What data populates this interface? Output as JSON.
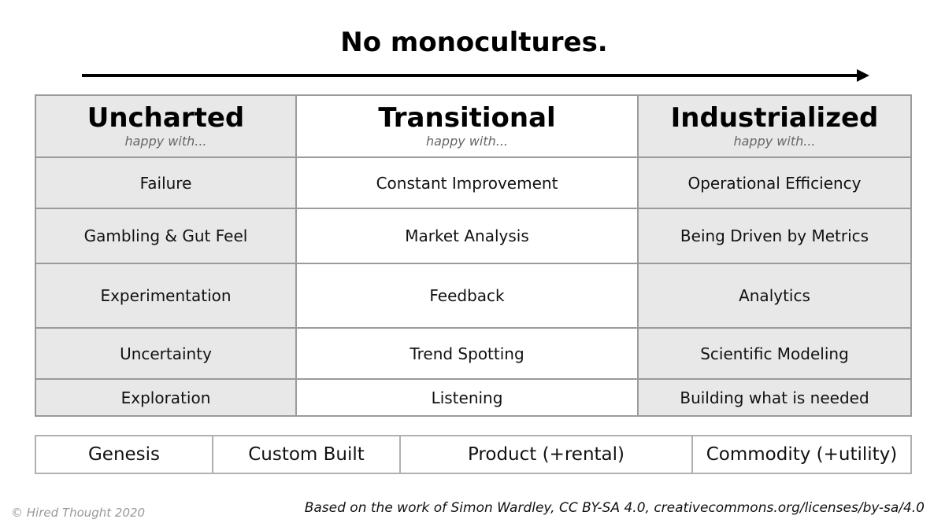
{
  "title": "No monocultures.",
  "columns": [
    {
      "heading": "Uncharted",
      "subtitle": "happy with..."
    },
    {
      "heading": "Transitional",
      "subtitle": "happy with..."
    },
    {
      "heading": "Industrialized",
      "subtitle": "happy with..."
    }
  ],
  "rows": [
    [
      "Failure",
      "Constant Improvement",
      "Operational Efficiency"
    ],
    [
      "Gambling & Gut Feel",
      "Market Analysis",
      "Being Driven by Metrics"
    ],
    [
      "Experimentation",
      "Feedback",
      "Analytics"
    ],
    [
      "Uncertainty",
      "Trend Spotting",
      "Scientific Modeling"
    ],
    [
      "Exploration",
      "Listening",
      "Building what is needed"
    ]
  ],
  "stages": [
    "Genesis",
    "Custom Built",
    "Product (+rental)",
    "Commodity (+utility)"
  ],
  "copyright": "© Hired Thought 2020",
  "attribution": "Based on the work of Simon Wardley, CC BY-SA 4.0, creativecommons.org/licenses/by-sa/4.0",
  "colors": {
    "shade": "#e8e8e8",
    "border": "#9b9b9b",
    "arrow": "#000000"
  }
}
